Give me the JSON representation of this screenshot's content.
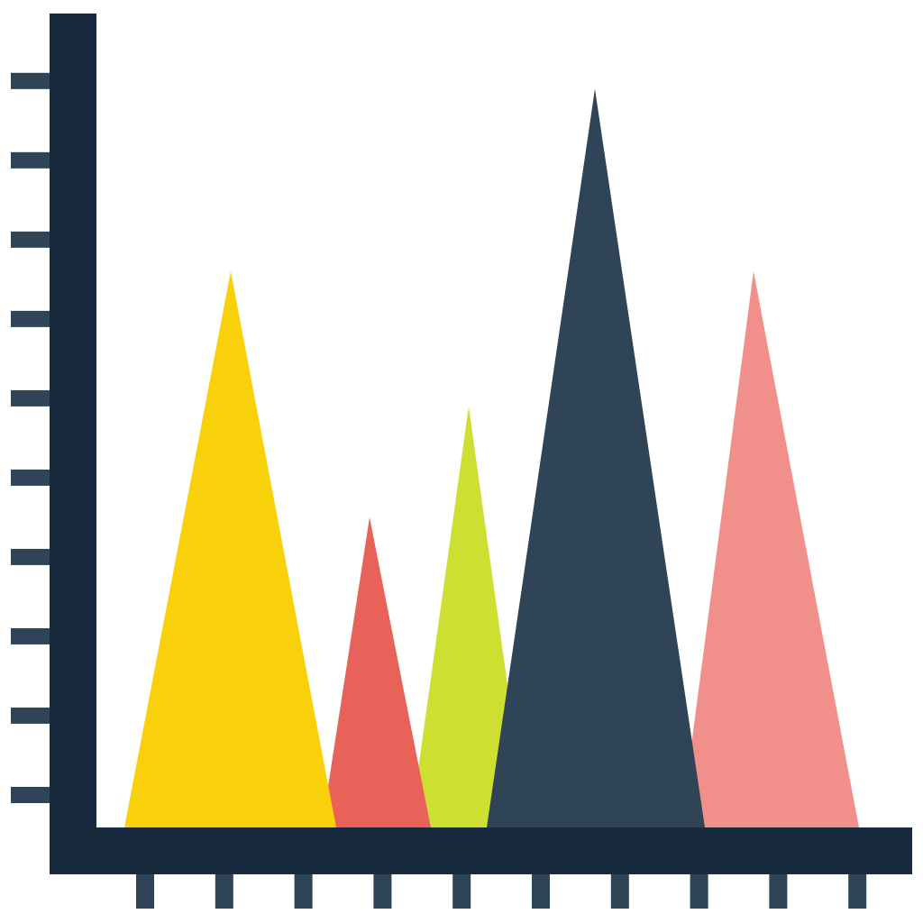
{
  "chart_data": {
    "type": "triangle",
    "categories": [
      null,
      null,
      null,
      null,
      null
    ],
    "values": [
      7.6,
      4.5,
      5.9,
      9.9,
      7.6
    ],
    "colors": [
      "#f9d10a",
      "#e9625a",
      "#cde032",
      "#2f4456",
      "#f18f8a"
    ],
    "ylim": [
      0,
      10.85
    ],
    "yticks": [
      1,
      2,
      3,
      4,
      5,
      6,
      7,
      8,
      9,
      10
    ]
  }
}
